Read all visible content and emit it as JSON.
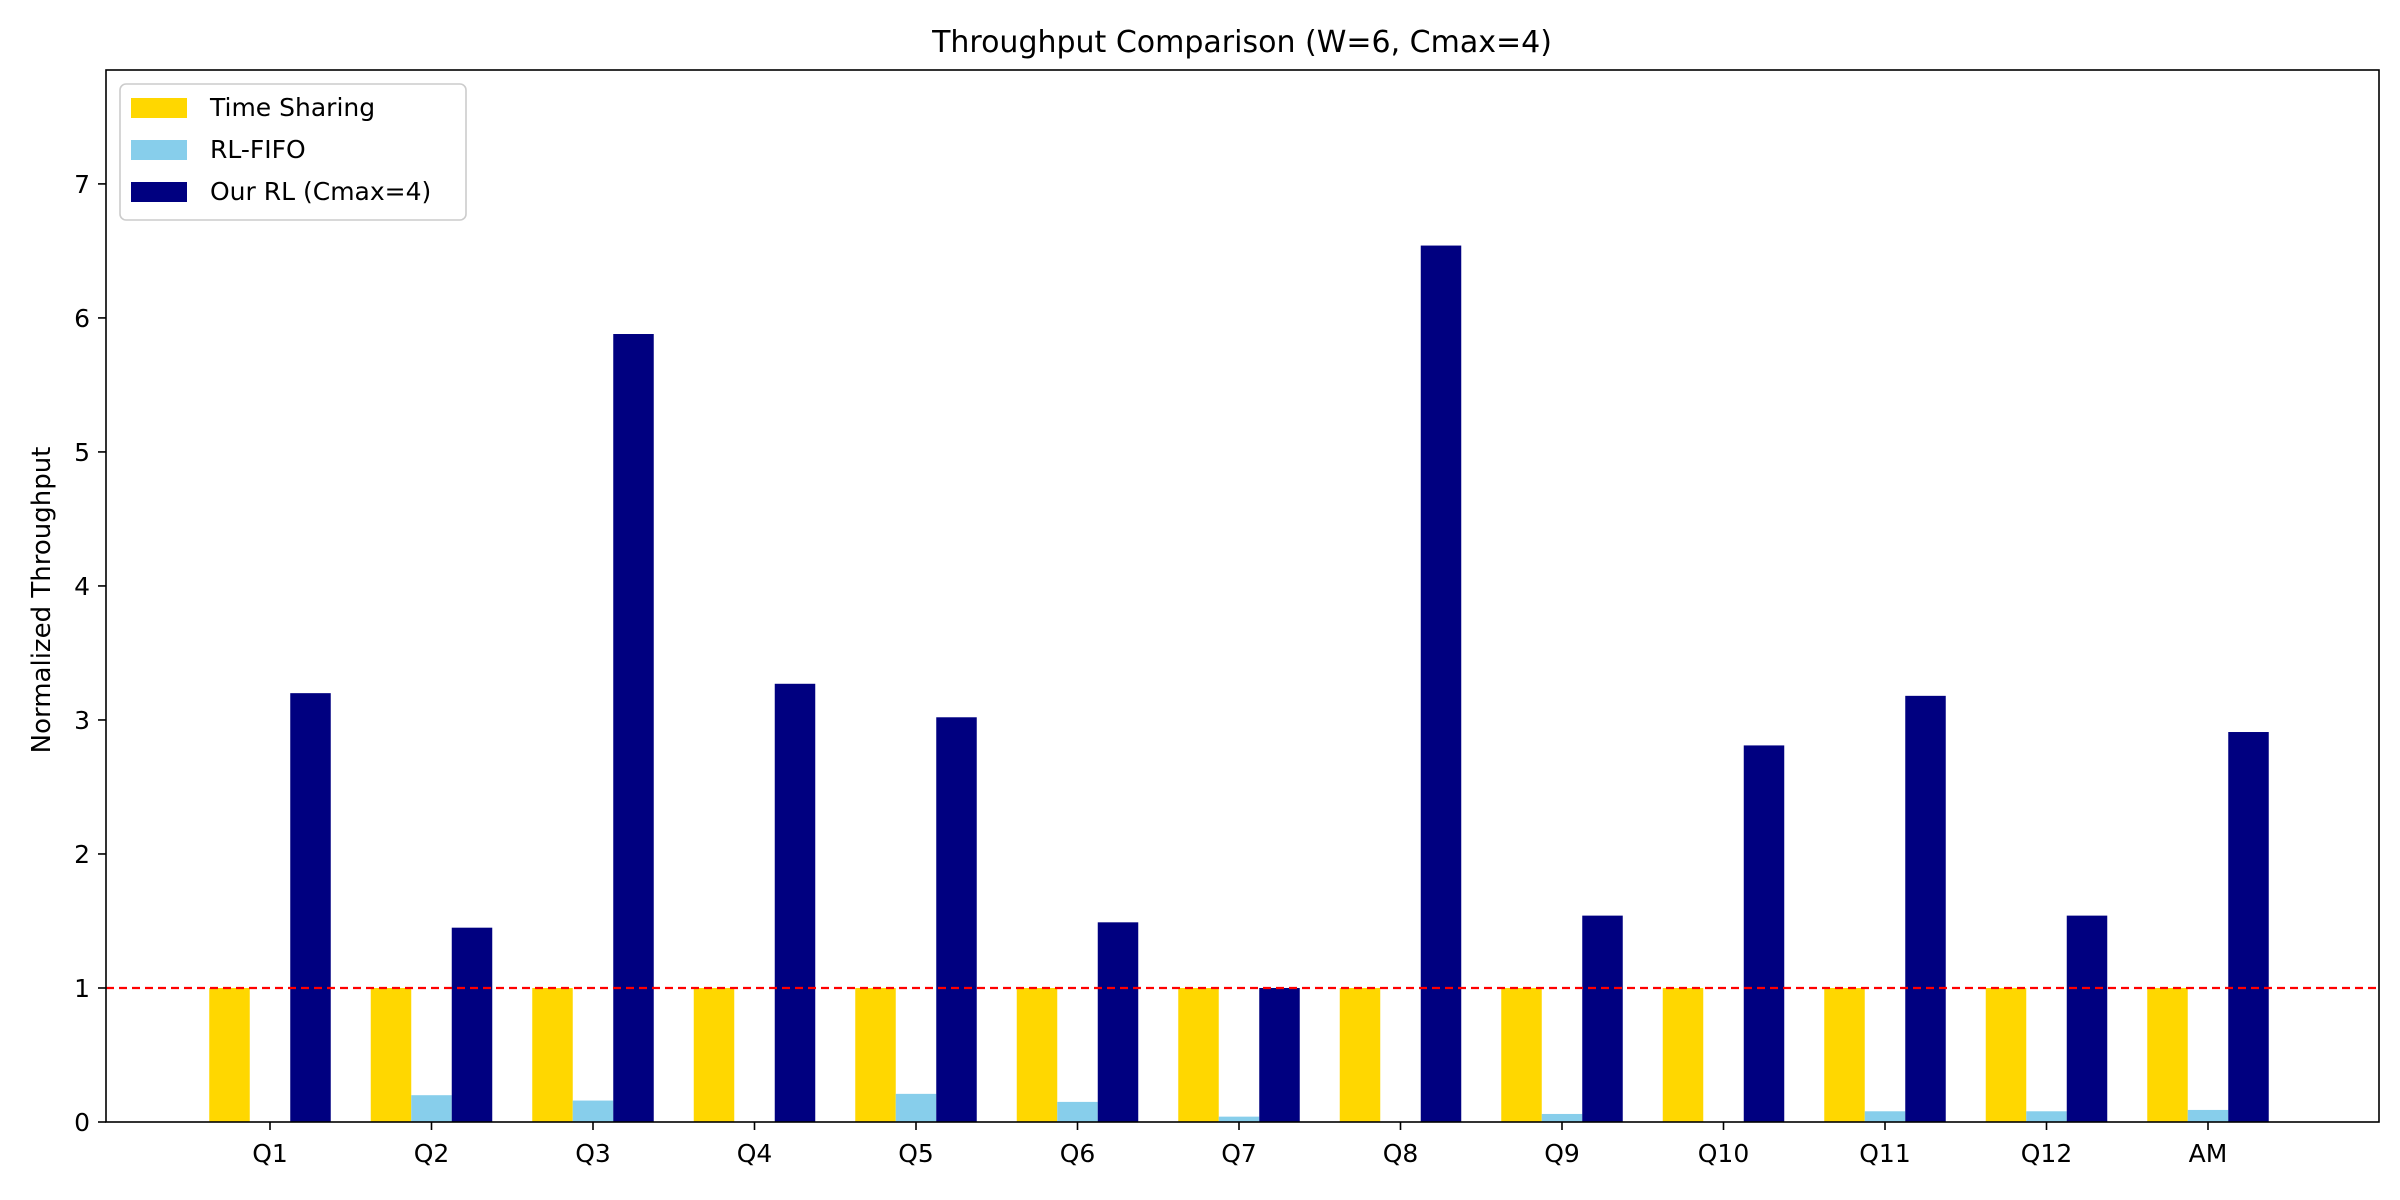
{
  "chart_data": {
    "type": "bar",
    "title": "Throughput Comparison (W=6, Cmax=4)",
    "xlabel": "",
    "ylabel": "Normalized Throughput",
    "categories": [
      "Q1",
      "Q2",
      "Q3",
      "Q4",
      "Q5",
      "Q6",
      "Q7",
      "Q8",
      "Q9",
      "Q10",
      "Q11",
      "Q12",
      "AM"
    ],
    "series": [
      {
        "name": "Time Sharing",
        "color": "#FFD700",
        "values": [
          1,
          1,
          1,
          1,
          1,
          1,
          1,
          1,
          1,
          1,
          1,
          1,
          1
        ]
      },
      {
        "name": "RL-FIFO",
        "color": "#87CEEB",
        "values": [
          0,
          0.2,
          0.16,
          0,
          0.21,
          0.15,
          0.04,
          0,
          0.06,
          0,
          0.08,
          0.08,
          0.09
        ]
      },
      {
        "name": "Our RL (Cmax=4)",
        "color": "#000080",
        "values": [
          3.2,
          1.45,
          5.88,
          3.27,
          3.02,
          1.49,
          1.0,
          6.54,
          1.54,
          2.81,
          3.18,
          1.54,
          2.91
        ]
      }
    ],
    "ylim": [
      0,
      7.85
    ],
    "yticks": [
      0,
      1,
      2,
      3,
      4,
      5,
      6,
      7
    ],
    "reference_line": {
      "y": 1,
      "color": "#FF0000",
      "style": "dashed"
    },
    "grid": false,
    "legend_position": "upper-left"
  }
}
